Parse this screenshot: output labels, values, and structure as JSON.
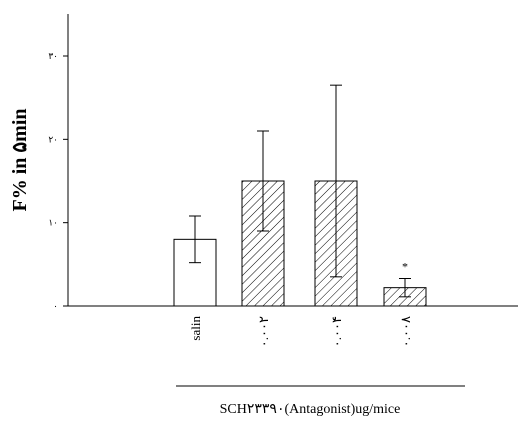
{
  "chart_data": {
    "type": "bar",
    "title": "",
    "ylabel": "F% in ۵min",
    "xlabel": "SCH۲۳۳۹۰(Antagonist)ug/mice",
    "ylim": [
      0,
      30
    ],
    "yticks": [
      0,
      10,
      20,
      30
    ],
    "ytick_labels": [
      "۰",
      "۱۰",
      "۲۰",
      "۳۰"
    ],
    "categories": [
      "salin",
      "۰.۰۰۲",
      "۰.۰۰۴",
      "۰.۰۰۸"
    ],
    "values": [
      8,
      15,
      15,
      2.2
    ],
    "errors": [
      2.8,
      6,
      11.5,
      1.1
    ],
    "hatched": [
      false,
      true,
      true,
      true
    ],
    "annotations": [
      {
        "category_index": 3,
        "text": "*"
      }
    ],
    "grid": false,
    "legend": "none"
  }
}
